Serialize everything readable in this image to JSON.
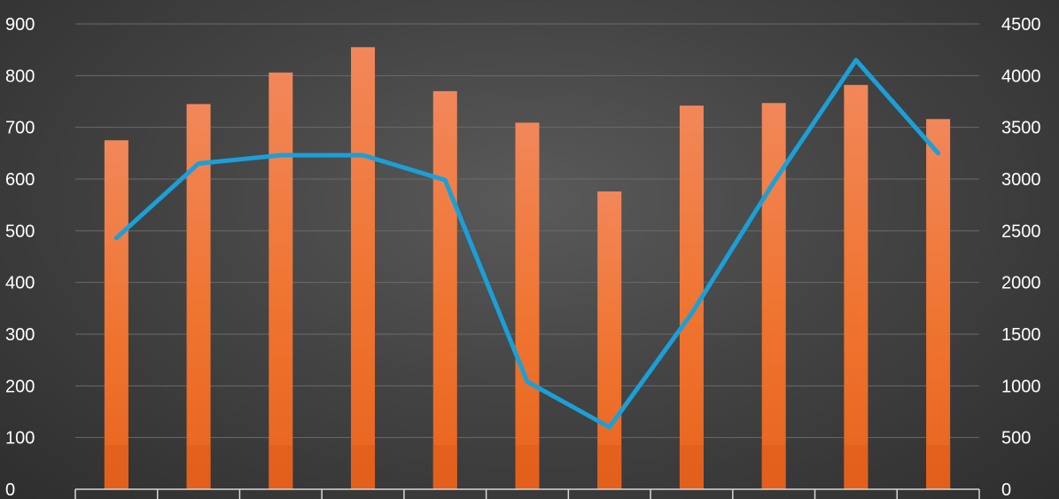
{
  "chart_data": {
    "type": "bar",
    "title": "",
    "xlabel": "",
    "ylabel": "",
    "y2label": "",
    "categories": [
      "",
      "",
      "",
      "",
      "",
      "",
      "",
      "",
      "",
      "",
      ""
    ],
    "series": [
      {
        "type": "bar",
        "axis": "left",
        "color": "#f07a3a",
        "values": [
          675,
          745,
          806,
          855,
          770,
          709,
          576,
          742,
          747,
          782,
          716
        ]
      },
      {
        "type": "line",
        "axis": "right",
        "color": "#1aa0d8",
        "values": [
          2430,
          3150,
          3230,
          3230,
          2990,
          1040,
          600,
          1700,
          2970,
          4150,
          3250
        ]
      }
    ],
    "ylim": [
      0,
      900
    ],
    "y2lim": [
      0,
      4500
    ],
    "yticks": [
      "0",
      "100",
      "200",
      "300",
      "400",
      "500",
      "600",
      "700",
      "800",
      "900"
    ],
    "y2ticks": [
      "0",
      "500",
      "1000",
      "1500",
      "2000",
      "2500",
      "3000",
      "3500",
      "4000",
      "4500"
    ],
    "grid": true,
    "legend": "none"
  }
}
